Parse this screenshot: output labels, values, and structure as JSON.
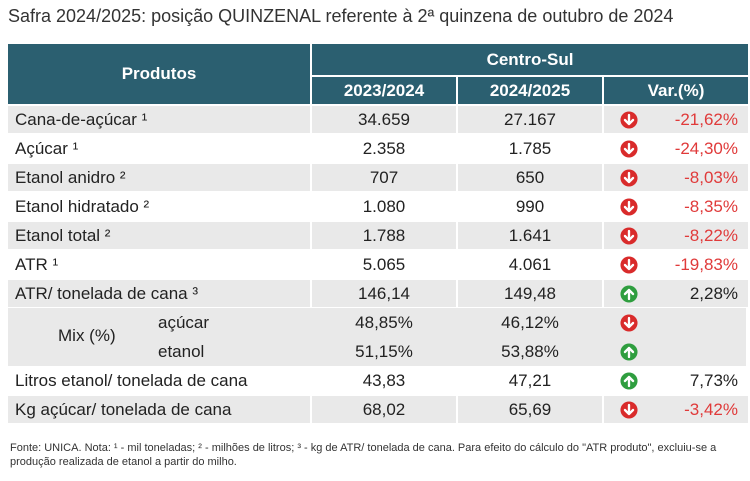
{
  "title": "Safra 2024/2025: posição QUINZENAL referente à 2ª quinzena de outubro de 2024",
  "header": {
    "produtos": "Produtos",
    "region": "Centro-Sul",
    "col1": "2023/2024",
    "col2": "2024/2025",
    "col3": "Var.(%)"
  },
  "rows": [
    {
      "label": "Cana-de-açúcar ¹",
      "v1": "34.659",
      "v2": "27.167",
      "var": "-21,62%",
      "dir": "down"
    },
    {
      "label": "Açúcar ¹",
      "v1": "2.358",
      "v2": "1.785",
      "var": "-24,30%",
      "dir": "down"
    },
    {
      "label": "Etanol anidro ²",
      "v1": "707",
      "v2": "650",
      "var": "-8,03%",
      "dir": "down"
    },
    {
      "label": "Etanol hidratado ²",
      "v1": "1.080",
      "v2": "990",
      "var": "-8,35%",
      "dir": "down"
    },
    {
      "label": "Etanol total ²",
      "v1": "1.788",
      "v2": "1.641",
      "var": "-8,22%",
      "dir": "down"
    },
    {
      "label": "ATR ¹",
      "v1": "5.065",
      "v2": "4.061",
      "var": "-19,83%",
      "dir": "down"
    },
    {
      "label": "ATR/ tonelada de cana ³",
      "v1": "146,14",
      "v2": "149,48",
      "var": "2,28%",
      "dir": "up"
    }
  ],
  "mix": {
    "label": "Mix (%)",
    "rows": [
      {
        "sub": "açúcar",
        "v1": "48,85%",
        "v2": "46,12%",
        "dir": "down"
      },
      {
        "sub": "etanol",
        "v1": "51,15%",
        "v2": "53,88%",
        "dir": "up"
      }
    ]
  },
  "tail_rows": [
    {
      "label": "Litros etanol/ tonelada de cana",
      "v1": "43,83",
      "v2": "47,21",
      "var": "7,73%",
      "dir": "up"
    },
    {
      "label": "Kg açúcar/ tonelada de cana",
      "v1": "68,02",
      "v2": "65,69",
      "var": "-3,42%",
      "dir": "down"
    }
  ],
  "footnote": "Fonte: UNICA. Nota: ¹ - mil toneladas; ² - milhões de litros; ³ - kg de ATR/ tonelada de cana. Para efeito do cálculo do \"ATR produto\", excluiu-se a produção realizada de etanol a partir do milho.",
  "colors": {
    "header": "#2b5f70",
    "shade": "#e9e9e9",
    "down": "#d92b2b",
    "up": "#2f9e3f",
    "neg_text": "#e03a3a"
  },
  "icons": {
    "down": "arrow-down-circle-icon",
    "up": "arrow-up-circle-icon"
  }
}
